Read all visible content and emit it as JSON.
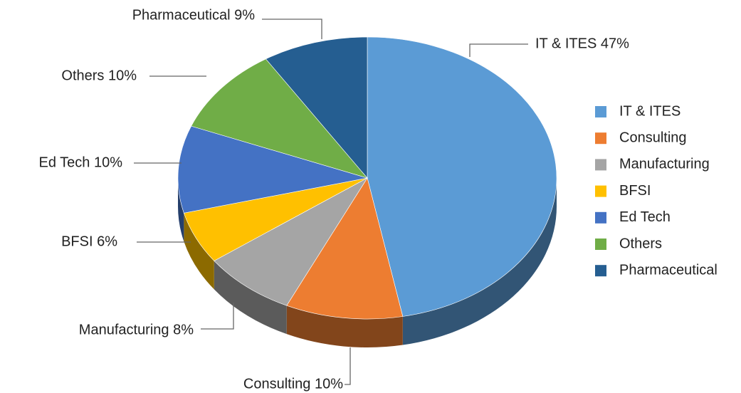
{
  "chart_data": {
    "type": "pie",
    "categories": [
      "IT & ITES",
      "Consulting",
      "Manufacturing",
      "BFSI",
      "Ed Tech",
      "Others",
      "Pharmaceutical"
    ],
    "values": [
      47,
      10,
      8,
      6,
      10,
      10,
      9
    ],
    "value_labels": [
      "IT & ITES 47%",
      "Consulting 10%",
      "Manufacturing 8%",
      "BFSI 6%",
      "Ed Tech 10%",
      "Others 10%",
      "Pharmaceutical 9%"
    ],
    "colors": [
      "#5b9bd5",
      "#ed7d31",
      "#a5a5a5",
      "#ffc000",
      "#4472c4",
      "#70ad47",
      "#255e91"
    ],
    "legend": "right"
  }
}
